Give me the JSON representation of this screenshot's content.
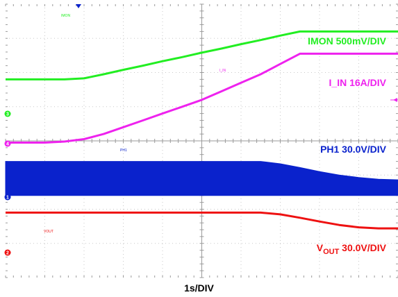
{
  "chart_data": {
    "type": "line",
    "x_label": "1s/DIV",
    "x": [
      0,
      0.5,
      1.0,
      1.5,
      2.0,
      2.5,
      3.0,
      3.5,
      4.0,
      4.5,
      5.0,
      5.5,
      6.0,
      6.5,
      7.0,
      7.5,
      8.0,
      8.5,
      9.0,
      9.5,
      10.0
    ],
    "x_range": [
      0,
      10
    ],
    "y_range_divisions": [
      0,
      8
    ],
    "grid": true,
    "series": [
      {
        "name": "IMON",
        "label_main": "IMON 500mV/DIV",
        "tiny_label": "IMON",
        "color": "#22ee22",
        "marker": "3",
        "y": [
          5.8,
          5.8,
          5.8,
          5.8,
          5.83,
          5.95,
          6.08,
          6.2,
          6.33,
          6.45,
          6.58,
          6.7,
          6.83,
          6.95,
          7.08,
          7.2,
          7.2,
          7.2,
          7.2,
          7.2,
          7.2
        ]
      },
      {
        "name": "I_IN",
        "label_main": "I_IN 16A/DIV",
        "tiny_label": "I_IN",
        "color": "#ee22ee",
        "marker": "4",
        "y": [
          3.95,
          3.95,
          3.95,
          3.98,
          4.05,
          4.2,
          4.4,
          4.6,
          4.8,
          5.0,
          5.2,
          5.45,
          5.7,
          5.95,
          6.25,
          6.55,
          6.55,
          6.55,
          6.55,
          6.55,
          6.55
        ]
      },
      {
        "name": "PH1",
        "label_main": "PH1 30.0V/DIV",
        "tiny_label": "PH1",
        "color": "#0a22cc",
        "marker": "1",
        "band": true,
        "y_top": [
          3.4,
          3.4,
          3.4,
          3.4,
          3.4,
          3.4,
          3.4,
          3.4,
          3.4,
          3.4,
          3.4,
          3.4,
          3.4,
          3.4,
          3.33,
          3.22,
          3.1,
          3.0,
          2.93,
          2.88,
          2.86
        ],
        "y_bottom": [
          2.4,
          2.4,
          2.4,
          2.4,
          2.4,
          2.4,
          2.4,
          2.4,
          2.4,
          2.4,
          2.4,
          2.4,
          2.4,
          2.4,
          2.4,
          2.4,
          2.4,
          2.4,
          2.4,
          2.4,
          2.4
        ]
      },
      {
        "name": "VOUT",
        "label_main": "V",
        "label_sub": "OUT",
        "label_tail": " 30.0V/DIV",
        "tiny_label": "VOUT",
        "color": "#ee1111",
        "marker": "2",
        "y": [
          1.9,
          1.9,
          1.9,
          1.9,
          1.9,
          1.9,
          1.9,
          1.9,
          1.9,
          1.9,
          1.9,
          1.9,
          1.9,
          1.9,
          1.85,
          1.75,
          1.64,
          1.54,
          1.47,
          1.44,
          1.44
        ]
      }
    ]
  }
}
